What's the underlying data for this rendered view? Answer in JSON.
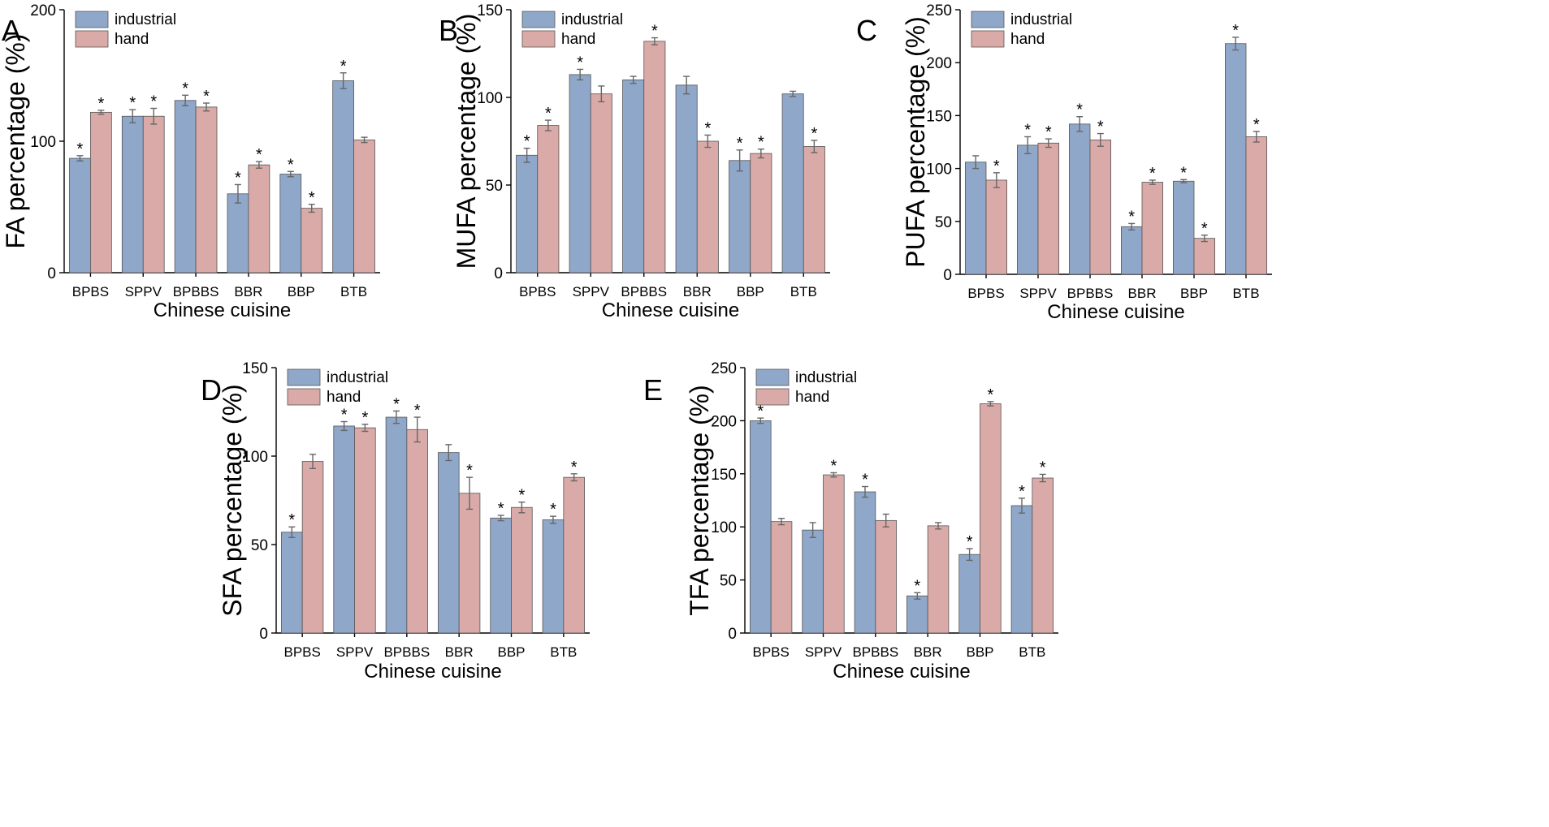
{
  "colors": {
    "industrial": "#8fa7c9",
    "hand": "#d9aaa8"
  },
  "legend": {
    "industrial": "industrial",
    "hand": "hand"
  },
  "chart_data": [
    {
      "type": "bar",
      "panel": "A",
      "title": "",
      "xlabel": "Chinese cuisine",
      "ylabel": "FA percentage (%)",
      "ylim": [
        0,
        200
      ],
      "yticks": [
        0,
        100,
        200
      ],
      "legend_position": "top-left",
      "categories": [
        "BPBS",
        "SPPV",
        "BPBBS",
        "BBR",
        "BBP",
        "BTB"
      ],
      "series": [
        {
          "name": "industrial",
          "values": [
            87,
            119,
            131,
            60,
            75,
            146
          ],
          "errors": [
            2,
            5,
            4,
            7,
            2,
            6
          ],
          "significant": [
            true,
            true,
            true,
            true,
            true,
            true
          ]
        },
        {
          "name": "hand",
          "values": [
            122,
            119,
            126,
            82,
            49,
            101
          ],
          "errors": [
            1.5,
            6,
            3,
            2.5,
            3,
            2
          ],
          "significant": [
            true,
            true,
            true,
            true,
            true,
            false
          ]
        }
      ]
    },
    {
      "type": "bar",
      "panel": "B",
      "title": "",
      "xlabel": "Chinese cuisine",
      "ylabel": "MUFA percentage (%)",
      "ylim": [
        0,
        150
      ],
      "yticks": [
        0,
        50,
        100,
        150
      ],
      "legend_position": "top-left",
      "categories": [
        "BPBS",
        "SPPV",
        "BPBBS",
        "BBR",
        "BBP",
        "BTB"
      ],
      "series": [
        {
          "name": "industrial",
          "values": [
            67,
            113,
            110,
            107,
            64,
            102
          ],
          "errors": [
            4,
            3,
            2,
            5,
            6,
            1.5
          ],
          "significant": [
            true,
            true,
            false,
            false,
            true,
            false
          ]
        },
        {
          "name": "hand",
          "values": [
            84,
            102,
            132,
            75,
            68,
            72
          ],
          "errors": [
            3,
            4.5,
            2,
            3.5,
            2.5,
            3.5
          ],
          "significant": [
            true,
            false,
            true,
            true,
            true,
            true
          ]
        }
      ]
    },
    {
      "type": "bar",
      "panel": "C",
      "title": "",
      "xlabel": "Chinese cuisine",
      "ylabel": "PUFA percentage (%)",
      "ylim": [
        0,
        250
      ],
      "yticks": [
        0,
        50,
        100,
        150,
        200,
        250
      ],
      "legend_position": "top-left",
      "categories": [
        "BPBS",
        "SPPV",
        "BPBBS",
        "BBR",
        "BBP",
        "BTB"
      ],
      "series": [
        {
          "name": "industrial",
          "values": [
            106,
            122,
            142,
            45,
            88,
            218
          ],
          "errors": [
            6,
            8,
            7,
            3,
            1.5,
            6
          ],
          "significant": [
            false,
            true,
            true,
            true,
            true,
            true
          ]
        },
        {
          "name": "hand",
          "values": [
            89,
            124,
            127,
            87,
            34,
            130
          ],
          "errors": [
            7,
            4,
            6,
            2,
            3,
            5
          ],
          "significant": [
            true,
            true,
            true,
            true,
            true,
            true
          ]
        }
      ]
    },
    {
      "type": "bar",
      "panel": "D",
      "title": "",
      "xlabel": "Chinese cuisine",
      "ylabel": "SFA percentage (%)",
      "ylim": [
        0,
        150
      ],
      "yticks": [
        0,
        50,
        100,
        150
      ],
      "legend_position": "top-left",
      "categories": [
        "BPBS",
        "SPPV",
        "BPBBS",
        "BBR",
        "BBP",
        "BTB"
      ],
      "series": [
        {
          "name": "industrial",
          "values": [
            57,
            117,
            122,
            102,
            65,
            64
          ],
          "errors": [
            3,
            2.5,
            3.5,
            4.5,
            1.5,
            2
          ],
          "significant": [
            true,
            true,
            true,
            false,
            true,
            true
          ]
        },
        {
          "name": "hand",
          "values": [
            97,
            116,
            115,
            79,
            71,
            88
          ],
          "errors": [
            4,
            2,
            7,
            9,
            3,
            2
          ],
          "significant": [
            false,
            true,
            true,
            true,
            true,
            true
          ]
        }
      ]
    },
    {
      "type": "bar",
      "panel": "E",
      "title": "",
      "xlabel": "Chinese cuisine",
      "ylabel": "TFA  percentage (%)",
      "ylim": [
        0,
        250
      ],
      "yticks": [
        0,
        50,
        100,
        150,
        200,
        250
      ],
      "legend_position": "top-left",
      "categories": [
        "BPBS",
        "SPPV",
        "BPBBS",
        "BBR",
        "BBP",
        "BTB"
      ],
      "series": [
        {
          "name": "industrial",
          "values": [
            200,
            97,
            133,
            35,
            74,
            120
          ],
          "errors": [
            2.5,
            7,
            5,
            3,
            5.5,
            7
          ],
          "significant": [
            true,
            false,
            true,
            true,
            true,
            true
          ]
        },
        {
          "name": "hand",
          "values": [
            105,
            149,
            106,
            101,
            216,
            146
          ],
          "errors": [
            3,
            2,
            6,
            3,
            2,
            3.5
          ],
          "significant": [
            false,
            true,
            false,
            false,
            true,
            true
          ]
        }
      ]
    }
  ]
}
